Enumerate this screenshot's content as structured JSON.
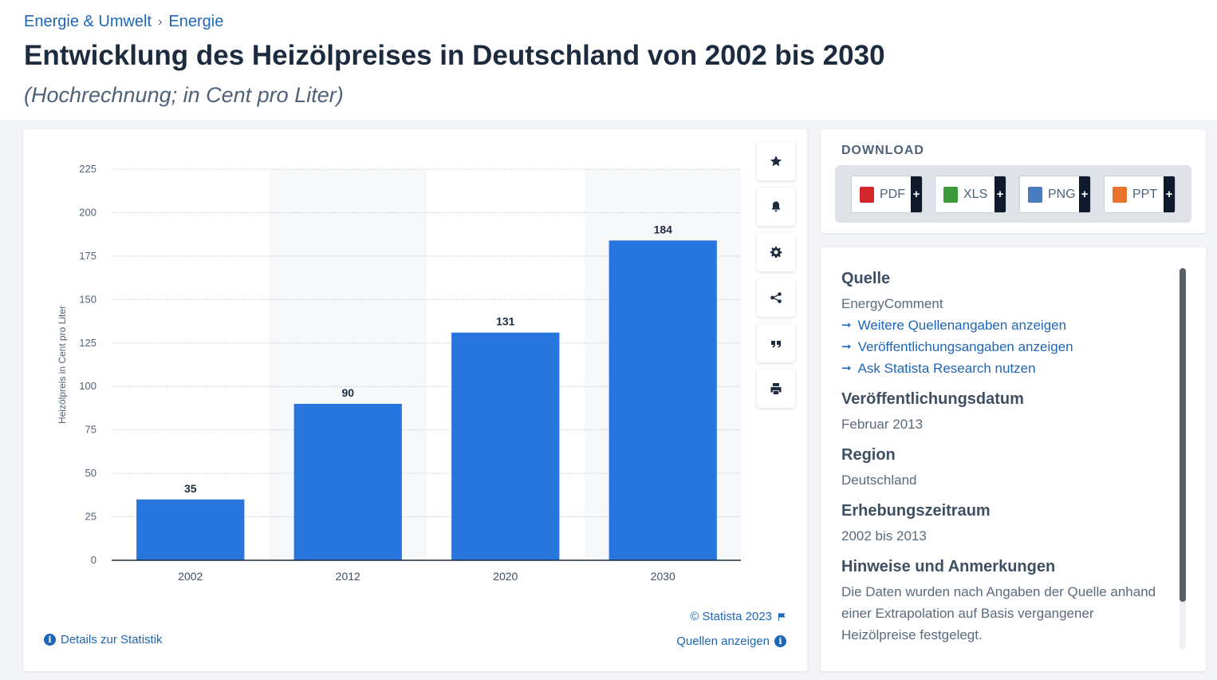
{
  "breadcrumb": {
    "item1": "Energie & Umwelt",
    "separator": "›",
    "item2": "Energie"
  },
  "page_title": "Entwicklung des Heizölpreises in Deutschland von 2002 bis 2030",
  "subtitle": "(Hochrechnung; in Cent pro Liter)",
  "chart_data": {
    "type": "bar",
    "categories": [
      "2002",
      "2012",
      "2020",
      "2030"
    ],
    "values": [
      35,
      90,
      131,
      184
    ],
    "ylabel": "Heizölpreis in Cent pro Liter",
    "ylim": [
      0,
      225
    ],
    "yticks": [
      0,
      25,
      50,
      75,
      100,
      125,
      150,
      175,
      200,
      225
    ],
    "grid": true,
    "bar_color": "#2876dd"
  },
  "toolbar": {
    "icons": [
      "star-icon",
      "bell-icon",
      "gear-icon",
      "share-icon",
      "quote-icon",
      "print-icon"
    ]
  },
  "copyright": "© Statista 2023",
  "details_link": "Details zur Statistik",
  "sources_link": "Quellen anzeigen",
  "download": {
    "title": "DOWNLOAD",
    "buttons": [
      {
        "label": "PDF",
        "plus": "+",
        "color": "#d2262c"
      },
      {
        "label": "XLS",
        "plus": "+",
        "color": "#3c9a3a"
      },
      {
        "label": "PNG",
        "plus": "+",
        "color": "#4a7bbf"
      },
      {
        "label": "PPT",
        "plus": "+",
        "color": "#e8752a"
      }
    ]
  },
  "info": {
    "source_heading": "Quelle",
    "source_value": "EnergyComment",
    "links": [
      "Weitere Quellenangaben anzeigen",
      "Veröffentlichungsangaben anzeigen",
      "Ask Statista Research nutzen"
    ],
    "pub_heading": "Veröffentlichungsdatum",
    "pub_value": "Februar 2013",
    "region_heading": "Region",
    "region_value": "Deutschland",
    "period_heading": "Erhebungszeitraum",
    "period_value": "2002 bis 2013",
    "notes_heading": "Hinweise und Anmerkungen",
    "notes_value": "Die Daten wurden nach Angaben der Quelle anhand einer Extrapolation auf Basis vergangener Heizölpreise festgelegt."
  }
}
